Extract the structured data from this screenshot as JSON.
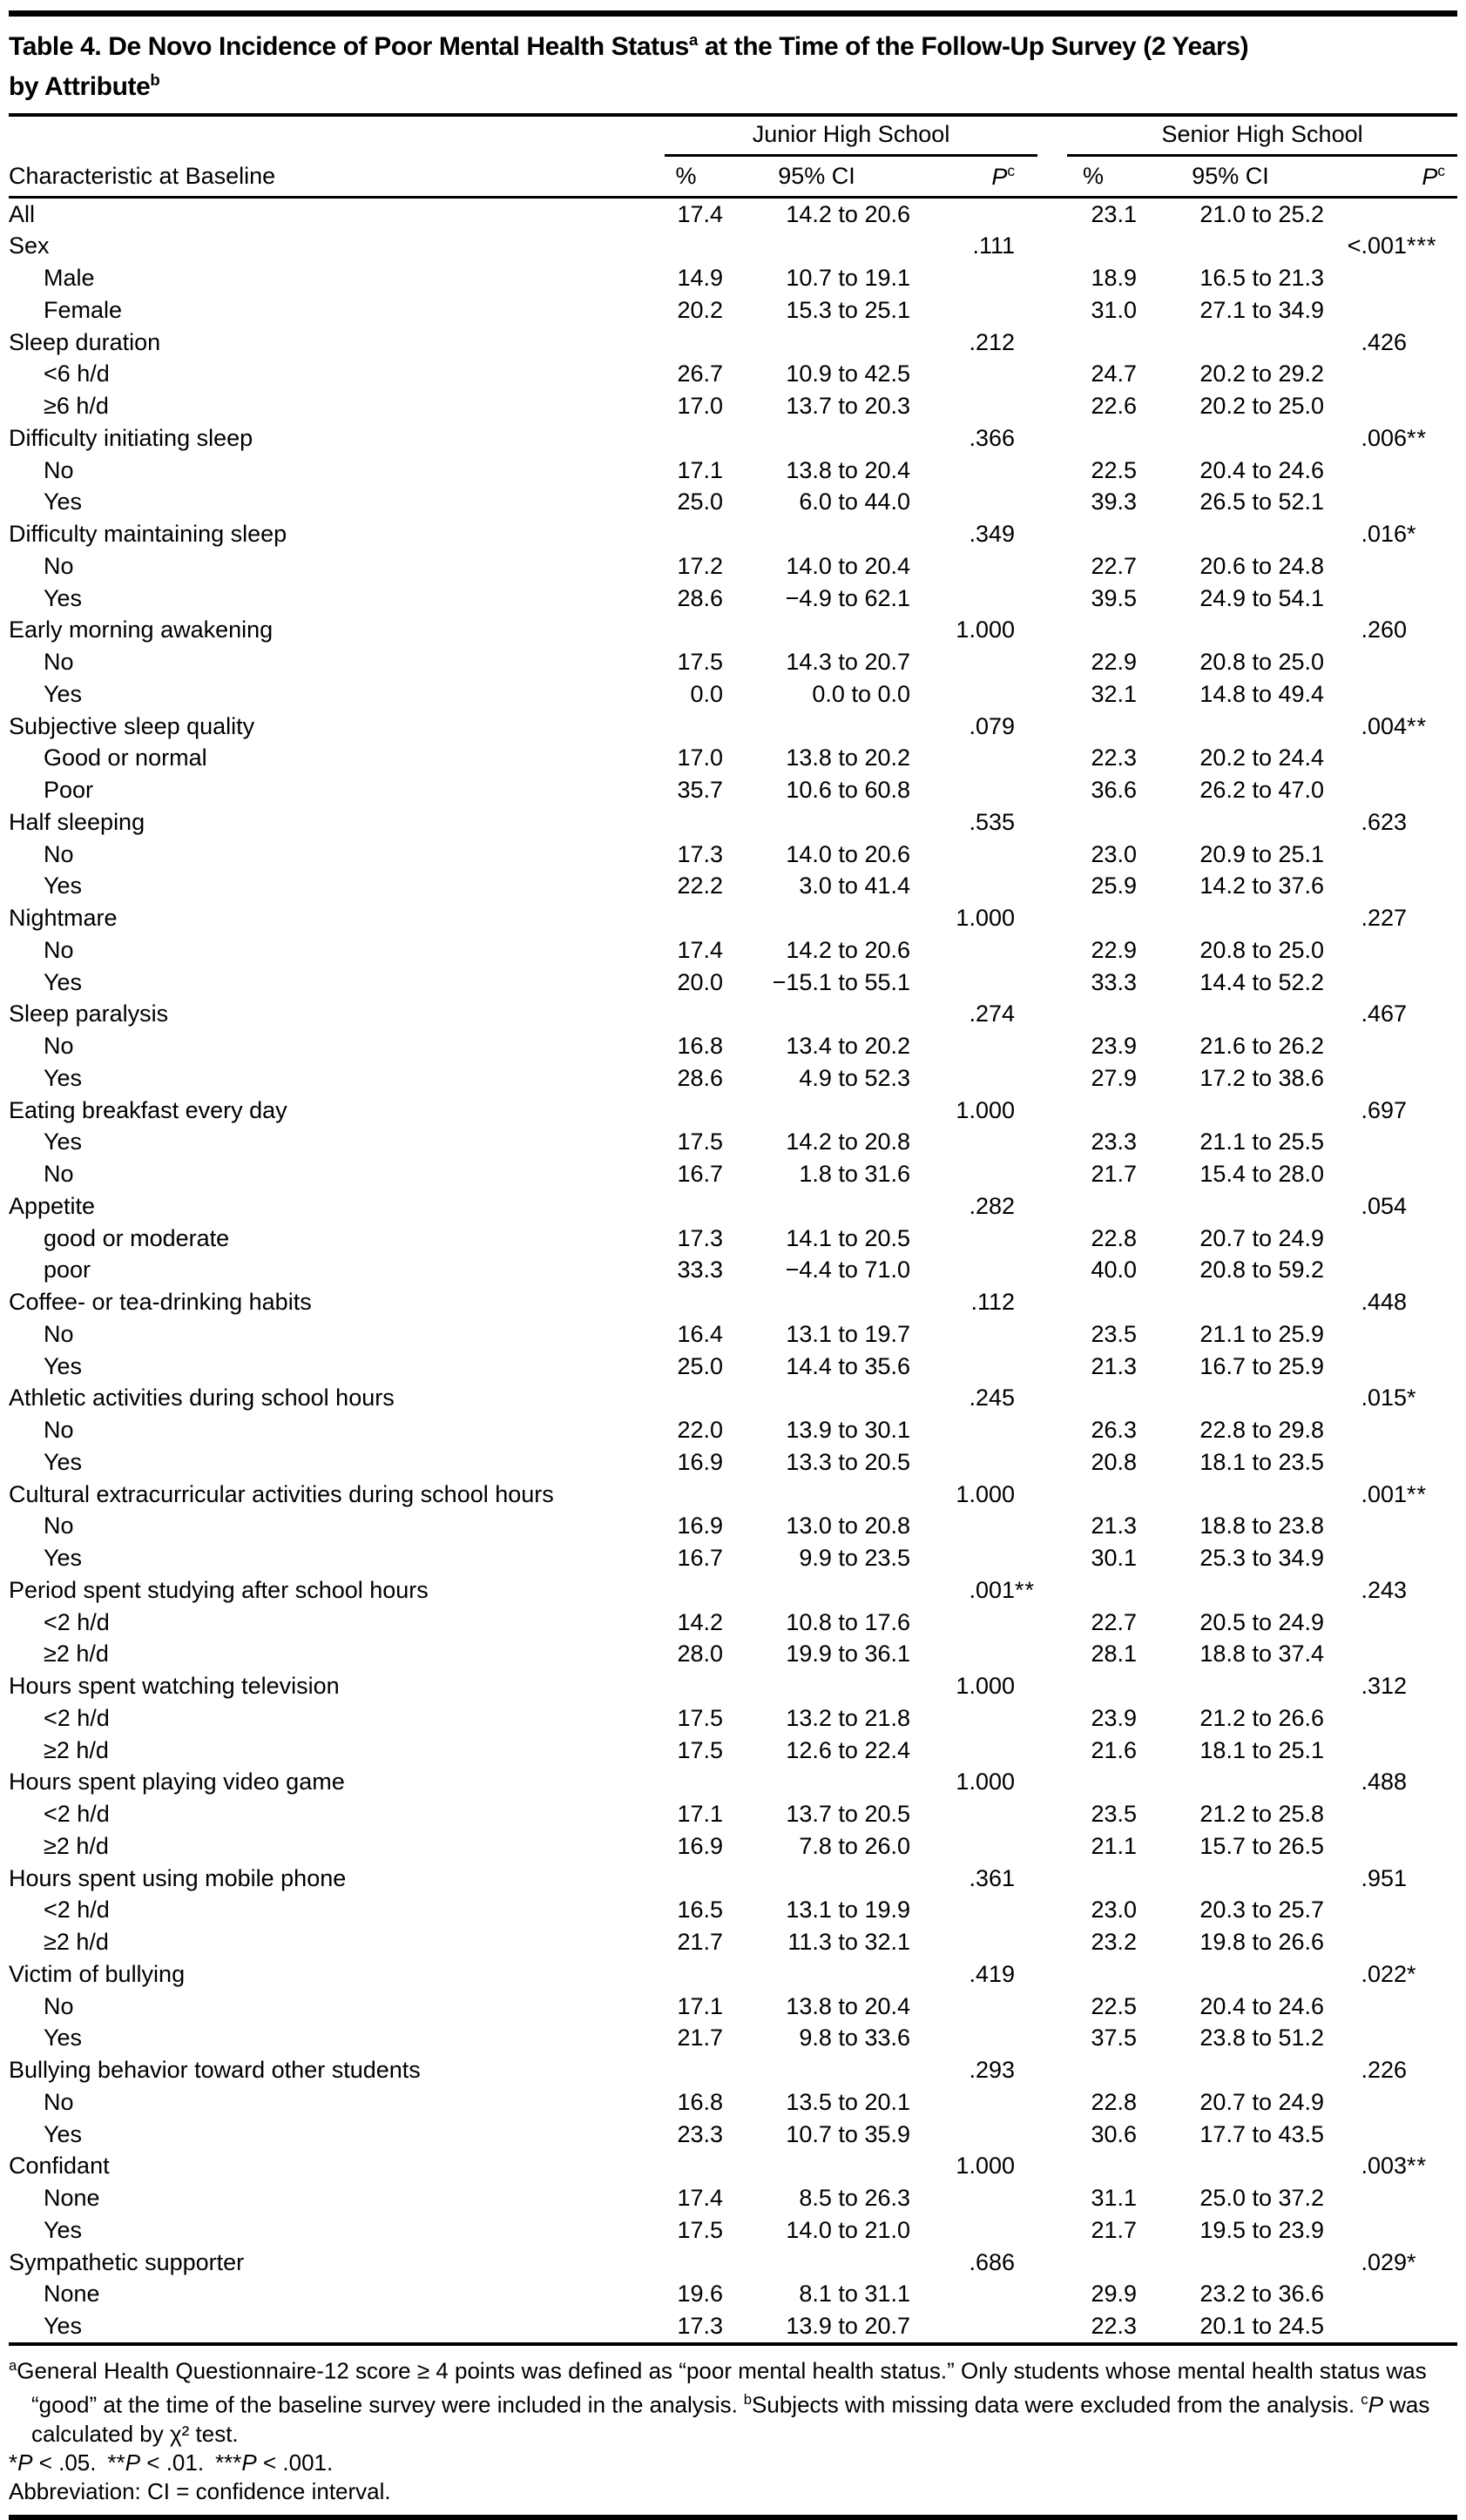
{
  "title": {
    "line1_pre": "Table 4. De Novo Incidence of Poor Mental Health Status",
    "sup_a": "a",
    "line1_post": " at the Time of the Follow-Up Survey (2 Years)",
    "line2": "by Attribute",
    "sup_b": "b"
  },
  "table": {
    "header": {
      "characteristic": "Characteristic at Baseline",
      "group_junior": "Junior High School",
      "group_senior": "Senior High School",
      "pct": "%",
      "ci": "95% CI",
      "p": "P",
      "p_sup": "c"
    },
    "rows": [
      {
        "label": "All",
        "indent": 0,
        "jp": "17.4",
        "jci": "14.2 to 20.6",
        "jpv": "",
        "jst": "",
        "sp": "23.1",
        "sci": "21.0 to 25.2",
        "spv": "",
        "sst": ""
      },
      {
        "label": "Sex",
        "indent": 0,
        "jp": "",
        "jci": "",
        "jpv": ".111",
        "jst": "",
        "sp": "",
        "sci": "",
        "spv": "<.001",
        "sst": "***"
      },
      {
        "label": "Male",
        "indent": 1,
        "jp": "14.9",
        "jci": "10.7 to 19.1",
        "jpv": "",
        "jst": "",
        "sp": "18.9",
        "sci": "16.5 to 21.3",
        "spv": "",
        "sst": ""
      },
      {
        "label": "Female",
        "indent": 1,
        "jp": "20.2",
        "jci": "15.3 to 25.1",
        "jpv": "",
        "jst": "",
        "sp": "31.0",
        "sci": "27.1 to 34.9",
        "spv": "",
        "sst": ""
      },
      {
        "label": "Sleep duration",
        "indent": 0,
        "jp": "",
        "jci": "",
        "jpv": ".212",
        "jst": "",
        "sp": "",
        "sci": "",
        "spv": ".426",
        "sst": ""
      },
      {
        "label": "<6 h/d",
        "indent": 1,
        "jp": "26.7",
        "jci": "10.9 to 42.5",
        "jpv": "",
        "jst": "",
        "sp": "24.7",
        "sci": "20.2 to 29.2",
        "spv": "",
        "sst": ""
      },
      {
        "label": "≥6 h/d",
        "indent": 1,
        "jp": "17.0",
        "jci": "13.7 to 20.3",
        "jpv": "",
        "jst": "",
        "sp": "22.6",
        "sci": "20.2 to 25.0",
        "spv": "",
        "sst": ""
      },
      {
        "label": "Difficulty initiating sleep",
        "indent": 0,
        "jp": "",
        "jci": "",
        "jpv": ".366",
        "jst": "",
        "sp": "",
        "sci": "",
        "spv": ".006",
        "sst": "**"
      },
      {
        "label": "No",
        "indent": 1,
        "jp": "17.1",
        "jci": "13.8 to 20.4",
        "jpv": "",
        "jst": "",
        "sp": "22.5",
        "sci": "20.4 to 24.6",
        "spv": "",
        "sst": ""
      },
      {
        "label": "Yes",
        "indent": 1,
        "jp": "25.0",
        "jci": "6.0 to 44.0",
        "jpv": "",
        "jst": "",
        "sp": "39.3",
        "sci": "26.5 to 52.1",
        "spv": "",
        "sst": ""
      },
      {
        "label": "Difficulty maintaining sleep",
        "indent": 0,
        "jp": "",
        "jci": "",
        "jpv": ".349",
        "jst": "",
        "sp": "",
        "sci": "",
        "spv": ".016",
        "sst": "*"
      },
      {
        "label": "No",
        "indent": 1,
        "jp": "17.2",
        "jci": "14.0 to 20.4",
        "jpv": "",
        "jst": "",
        "sp": "22.7",
        "sci": "20.6 to 24.8",
        "spv": "",
        "sst": ""
      },
      {
        "label": "Yes",
        "indent": 1,
        "jp": "28.6",
        "jci": "−4.9 to 62.1",
        "jpv": "",
        "jst": "",
        "sp": "39.5",
        "sci": "24.9 to 54.1",
        "spv": "",
        "sst": ""
      },
      {
        "label": "Early morning awakening",
        "indent": 0,
        "jp": "",
        "jci": "",
        "jpv": "1.000",
        "jst": "",
        "sp": "",
        "sci": "",
        "spv": ".260",
        "sst": ""
      },
      {
        "label": "No",
        "indent": 1,
        "jp": "17.5",
        "jci": "14.3 to 20.7",
        "jpv": "",
        "jst": "",
        "sp": "22.9",
        "sci": "20.8 to 25.0",
        "spv": "",
        "sst": ""
      },
      {
        "label": "Yes",
        "indent": 1,
        "jp": "0.0",
        "jci": "0.0 to 0.0",
        "jpv": "",
        "jst": "",
        "sp": "32.1",
        "sci": "14.8 to 49.4",
        "spv": "",
        "sst": ""
      },
      {
        "label": "Subjective sleep quality",
        "indent": 0,
        "jp": "",
        "jci": "",
        "jpv": ".079",
        "jst": "",
        "sp": "",
        "sci": "",
        "spv": ".004",
        "sst": "**"
      },
      {
        "label": "Good or normal",
        "indent": 1,
        "jp": "17.0",
        "jci": "13.8 to 20.2",
        "jpv": "",
        "jst": "",
        "sp": "22.3",
        "sci": "20.2 to 24.4",
        "spv": "",
        "sst": ""
      },
      {
        "label": "Poor",
        "indent": 1,
        "jp": "35.7",
        "jci": "10.6 to 60.8",
        "jpv": "",
        "jst": "",
        "sp": "36.6",
        "sci": "26.2 to 47.0",
        "spv": "",
        "sst": ""
      },
      {
        "label": "Half sleeping",
        "indent": 0,
        "jp": "",
        "jci": "",
        "jpv": ".535",
        "jst": "",
        "sp": "",
        "sci": "",
        "spv": ".623",
        "sst": ""
      },
      {
        "label": "No",
        "indent": 1,
        "jp": "17.3",
        "jci": "14.0 to 20.6",
        "jpv": "",
        "jst": "",
        "sp": "23.0",
        "sci": "20.9 to 25.1",
        "spv": "",
        "sst": ""
      },
      {
        "label": "Yes",
        "indent": 1,
        "jp": "22.2",
        "jci": "3.0 to 41.4",
        "jpv": "",
        "jst": "",
        "sp": "25.9",
        "sci": "14.2 to 37.6",
        "spv": "",
        "sst": ""
      },
      {
        "label": "Nightmare",
        "indent": 0,
        "jp": "",
        "jci": "",
        "jpv": "1.000",
        "jst": "",
        "sp": "",
        "sci": "",
        "spv": ".227",
        "sst": ""
      },
      {
        "label": "No",
        "indent": 1,
        "jp": "17.4",
        "jci": "14.2 to 20.6",
        "jpv": "",
        "jst": "",
        "sp": "22.9",
        "sci": "20.8 to 25.0",
        "spv": "",
        "sst": ""
      },
      {
        "label": "Yes",
        "indent": 1,
        "jp": "20.0",
        "jci": "−15.1 to 55.1",
        "jpv": "",
        "jst": "",
        "sp": "33.3",
        "sci": "14.4 to 52.2",
        "spv": "",
        "sst": ""
      },
      {
        "label": "Sleep paralysis",
        "indent": 0,
        "jp": "",
        "jci": "",
        "jpv": ".274",
        "jst": "",
        "sp": "",
        "sci": "",
        "spv": ".467",
        "sst": ""
      },
      {
        "label": "No",
        "indent": 1,
        "jp": "16.8",
        "jci": "13.4 to 20.2",
        "jpv": "",
        "jst": "",
        "sp": "23.9",
        "sci": "21.6 to 26.2",
        "spv": "",
        "sst": ""
      },
      {
        "label": "Yes",
        "indent": 1,
        "jp": "28.6",
        "jci": "4.9 to 52.3",
        "jpv": "",
        "jst": "",
        "sp": "27.9",
        "sci": "17.2 to 38.6",
        "spv": "",
        "sst": ""
      },
      {
        "label": "Eating breakfast every day",
        "indent": 0,
        "jp": "",
        "jci": "",
        "jpv": "1.000",
        "jst": "",
        "sp": "",
        "sci": "",
        "spv": ".697",
        "sst": ""
      },
      {
        "label": "Yes",
        "indent": 1,
        "jp": "17.5",
        "jci": "14.2 to 20.8",
        "jpv": "",
        "jst": "",
        "sp": "23.3",
        "sci": "21.1 to 25.5",
        "spv": "",
        "sst": ""
      },
      {
        "label": "No",
        "indent": 1,
        "jp": "16.7",
        "jci": "1.8 to 31.6",
        "jpv": "",
        "jst": "",
        "sp": "21.7",
        "sci": "15.4 to 28.0",
        "spv": "",
        "sst": ""
      },
      {
        "label": "Appetite",
        "indent": 0,
        "jp": "",
        "jci": "",
        "jpv": ".282",
        "jst": "",
        "sp": "",
        "sci": "",
        "spv": ".054",
        "sst": ""
      },
      {
        "label": "good or moderate",
        "indent": 1,
        "jp": "17.3",
        "jci": "14.1 to 20.5",
        "jpv": "",
        "jst": "",
        "sp": "22.8",
        "sci": "20.7 to 24.9",
        "spv": "",
        "sst": ""
      },
      {
        "label": "poor",
        "indent": 1,
        "jp": "33.3",
        "jci": "−4.4 to 71.0",
        "jpv": "",
        "jst": "",
        "sp": "40.0",
        "sci": "20.8 to 59.2",
        "spv": "",
        "sst": ""
      },
      {
        "label": "Coffee- or tea-drinking habits",
        "indent": 0,
        "jp": "",
        "jci": "",
        "jpv": ".112",
        "jst": "",
        "sp": "",
        "sci": "",
        "spv": ".448",
        "sst": ""
      },
      {
        "label": "No",
        "indent": 1,
        "jp": "16.4",
        "jci": "13.1 to 19.7",
        "jpv": "",
        "jst": "",
        "sp": "23.5",
        "sci": "21.1 to 25.9",
        "spv": "",
        "sst": ""
      },
      {
        "label": "Yes",
        "indent": 1,
        "jp": "25.0",
        "jci": "14.4 to 35.6",
        "jpv": "",
        "jst": "",
        "sp": "21.3",
        "sci": "16.7 to 25.9",
        "spv": "",
        "sst": ""
      },
      {
        "label": "Athletic activities during school hours",
        "indent": 0,
        "jp": "",
        "jci": "",
        "jpv": ".245",
        "jst": "",
        "sp": "",
        "sci": "",
        "spv": ".015",
        "sst": "*"
      },
      {
        "label": "No",
        "indent": 1,
        "jp": "22.0",
        "jci": "13.9 to 30.1",
        "jpv": "",
        "jst": "",
        "sp": "26.3",
        "sci": "22.8 to 29.8",
        "spv": "",
        "sst": ""
      },
      {
        "label": "Yes",
        "indent": 1,
        "jp": "16.9",
        "jci": "13.3 to 20.5",
        "jpv": "",
        "jst": "",
        "sp": "20.8",
        "sci": "18.1 to 23.5",
        "spv": "",
        "sst": ""
      },
      {
        "label": "Cultural extracurricular activities during school hours",
        "indent": 0,
        "jp": "",
        "jci": "",
        "jpv": "1.000",
        "jst": "",
        "sp": "",
        "sci": "",
        "spv": ".001",
        "sst": "**"
      },
      {
        "label": "No",
        "indent": 1,
        "jp": "16.9",
        "jci": "13.0 to 20.8",
        "jpv": "",
        "jst": "",
        "sp": "21.3",
        "sci": "18.8 to 23.8",
        "spv": "",
        "sst": ""
      },
      {
        "label": "Yes",
        "indent": 1,
        "jp": "16.7",
        "jci": "9.9 to 23.5",
        "jpv": "",
        "jst": "",
        "sp": "30.1",
        "sci": "25.3 to 34.9",
        "spv": "",
        "sst": ""
      },
      {
        "label": "Period spent studying after school hours",
        "indent": 0,
        "jp": "",
        "jci": "",
        "jpv": ".001",
        "jst": "**",
        "sp": "",
        "sci": "",
        "spv": ".243",
        "sst": ""
      },
      {
        "label": "<2 h/d",
        "indent": 1,
        "jp": "14.2",
        "jci": "10.8 to 17.6",
        "jpv": "",
        "jst": "",
        "sp": "22.7",
        "sci": "20.5 to 24.9",
        "spv": "",
        "sst": ""
      },
      {
        "label": "≥2 h/d",
        "indent": 1,
        "jp": "28.0",
        "jci": "19.9 to 36.1",
        "jpv": "",
        "jst": "",
        "sp": "28.1",
        "sci": "18.8 to 37.4",
        "spv": "",
        "sst": ""
      },
      {
        "label": "Hours spent watching television",
        "indent": 0,
        "jp": "",
        "jci": "",
        "jpv": "1.000",
        "jst": "",
        "sp": "",
        "sci": "",
        "spv": ".312",
        "sst": ""
      },
      {
        "label": "<2 h/d",
        "indent": 1,
        "jp": "17.5",
        "jci": "13.2 to 21.8",
        "jpv": "",
        "jst": "",
        "sp": "23.9",
        "sci": "21.2 to 26.6",
        "spv": "",
        "sst": ""
      },
      {
        "label": "≥2 h/d",
        "indent": 1,
        "jp": "17.5",
        "jci": "12.6 to 22.4",
        "jpv": "",
        "jst": "",
        "sp": "21.6",
        "sci": "18.1 to 25.1",
        "spv": "",
        "sst": ""
      },
      {
        "label": "Hours spent playing video game",
        "indent": 0,
        "jp": "",
        "jci": "",
        "jpv": "1.000",
        "jst": "",
        "sp": "",
        "sci": "",
        "spv": ".488",
        "sst": ""
      },
      {
        "label": "<2 h/d",
        "indent": 1,
        "jp": "17.1",
        "jci": "13.7 to 20.5",
        "jpv": "",
        "jst": "",
        "sp": "23.5",
        "sci": "21.2 to 25.8",
        "spv": "",
        "sst": ""
      },
      {
        "label": "≥2 h/d",
        "indent": 1,
        "jp": "16.9",
        "jci": "7.8 to 26.0",
        "jpv": "",
        "jst": "",
        "sp": "21.1",
        "sci": "15.7 to 26.5",
        "spv": "",
        "sst": ""
      },
      {
        "label": "Hours spent using mobile phone",
        "indent": 0,
        "jp": "",
        "jci": "",
        "jpv": ".361",
        "jst": "",
        "sp": "",
        "sci": "",
        "spv": ".951",
        "sst": ""
      },
      {
        "label": "<2 h/d",
        "indent": 1,
        "jp": "16.5",
        "jci": "13.1 to 19.9",
        "jpv": "",
        "jst": "",
        "sp": "23.0",
        "sci": "20.3 to 25.7",
        "spv": "",
        "sst": ""
      },
      {
        "label": "≥2 h/d",
        "indent": 1,
        "jp": "21.7",
        "jci": "11.3 to 32.1",
        "jpv": "",
        "jst": "",
        "sp": "23.2",
        "sci": "19.8 to 26.6",
        "spv": "",
        "sst": ""
      },
      {
        "label": "Victim of bullying",
        "indent": 0,
        "jp": "",
        "jci": "",
        "jpv": ".419",
        "jst": "",
        "sp": "",
        "sci": "",
        "spv": ".022",
        "sst": "*"
      },
      {
        "label": "No",
        "indent": 1,
        "jp": "17.1",
        "jci": "13.8 to 20.4",
        "jpv": "",
        "jst": "",
        "sp": "22.5",
        "sci": "20.4 to 24.6",
        "spv": "",
        "sst": ""
      },
      {
        "label": "Yes",
        "indent": 1,
        "jp": "21.7",
        "jci": "9.8 to 33.6",
        "jpv": "",
        "jst": "",
        "sp": "37.5",
        "sci": "23.8 to 51.2",
        "spv": "",
        "sst": ""
      },
      {
        "label": "Bullying behavior toward other students",
        "indent": 0,
        "jp": "",
        "jci": "",
        "jpv": ".293",
        "jst": "",
        "sp": "",
        "sci": "",
        "spv": ".226",
        "sst": ""
      },
      {
        "label": "No",
        "indent": 1,
        "jp": "16.8",
        "jci": "13.5 to 20.1",
        "jpv": "",
        "jst": "",
        "sp": "22.8",
        "sci": "20.7 to 24.9",
        "spv": "",
        "sst": ""
      },
      {
        "label": "Yes",
        "indent": 1,
        "jp": "23.3",
        "jci": "10.7 to 35.9",
        "jpv": "",
        "jst": "",
        "sp": "30.6",
        "sci": "17.7 to 43.5",
        "spv": "",
        "sst": ""
      },
      {
        "label": "Confidant",
        "indent": 0,
        "jp": "",
        "jci": "",
        "jpv": "1.000",
        "jst": "",
        "sp": "",
        "sci": "",
        "spv": ".003",
        "sst": "**"
      },
      {
        "label": "None",
        "indent": 1,
        "jp": "17.4",
        "jci": "8.5 to 26.3",
        "jpv": "",
        "jst": "",
        "sp": "31.1",
        "sci": "25.0 to 37.2",
        "spv": "",
        "sst": ""
      },
      {
        "label": "Yes",
        "indent": 1,
        "jp": "17.5",
        "jci": "14.0 to 21.0",
        "jpv": "",
        "jst": "",
        "sp": "21.7",
        "sci": "19.5 to 23.9",
        "spv": "",
        "sst": ""
      },
      {
        "label": "Sympathetic supporter",
        "indent": 0,
        "jp": "",
        "jci": "",
        "jpv": ".686",
        "jst": "",
        "sp": "",
        "sci": "",
        "spv": ".029",
        "sst": "*"
      },
      {
        "label": "None",
        "indent": 1,
        "jp": "19.6",
        "jci": "8.1 to 31.1",
        "jpv": "",
        "jst": "",
        "sp": "29.9",
        "sci": "23.2 to 36.6",
        "spv": "",
        "sst": ""
      },
      {
        "label": "Yes",
        "indent": 1,
        "jp": "17.3",
        "jci": "13.9 to 20.7",
        "jpv": "",
        "jst": "",
        "sp": "22.3",
        "sci": "20.1 to 24.5",
        "spv": "",
        "sst": ""
      }
    ]
  },
  "footnotes": {
    "a_sup": "a",
    "a_text": "General Health Questionnaire-12 score ≥ 4 points was defined as “poor mental health status.” Only students whose mental health status was “good” at the time of the baseline survey were included in the analysis.",
    "b_sup": "b",
    "b_text": "Subjects with missing data were excluded from the analysis.",
    "c_sup": "c",
    "c_italic": "P",
    "c_text": " was calculated by χ² test.",
    "sig": [
      {
        "stars": "*",
        "p": "P",
        "rest": " < .05."
      },
      {
        "stars": "**",
        "p": "P",
        "rest": " < .01."
      },
      {
        "stars": "***",
        "p": "P",
        "rest": " < .001."
      }
    ],
    "abbrev": "Abbreviation: CI = confidence interval."
  },
  "colors": {
    "text": "#000000",
    "rule": "#000000",
    "background": "#ffffff"
  }
}
